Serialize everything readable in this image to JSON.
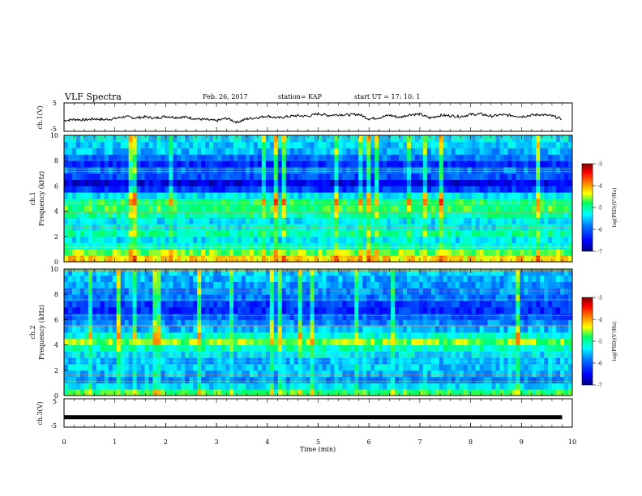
{
  "header": {
    "title": "VLF Spectra",
    "date": "Feb. 26, 2017",
    "station": "station= KAP",
    "start": "start  UT  =   17: 10: 1"
  },
  "chart_data": [
    {
      "type": "line",
      "id": "ch1_waveform",
      "ylabel": "ch.1(V)",
      "ylim": [
        -5,
        5
      ],
      "yticks": [
        "5",
        "-5"
      ],
      "xlim": [
        0,
        10
      ],
      "description_color": "#000000",
      "x": [
        0,
        0.2,
        0.4,
        0.6,
        0.8,
        1.0,
        1.2,
        1.4,
        1.6,
        1.8,
        2.0,
        2.2,
        2.4,
        2.6,
        2.8,
        3.0,
        3.2,
        3.4,
        3.6,
        3.8,
        4.0,
        4.2,
        4.4,
        4.6,
        4.8,
        5.0,
        5.2,
        5.4,
        5.6,
        5.8,
        6.0,
        6.2,
        6.4,
        6.6,
        6.8,
        7.0,
        7.2,
        7.4,
        7.6,
        7.8,
        8.0,
        8.2,
        8.4,
        8.6,
        8.8,
        9.0,
        9.2,
        9.4,
        9.6,
        9.8
      ],
      "y": [
        -1.2,
        -0.8,
        -1.0,
        -0.6,
        -0.9,
        -0.5,
        0.2,
        -0.3,
        0.1,
        -0.4,
        0.3,
        -0.1,
        0.0,
        -0.6,
        -0.9,
        -1.3,
        -0.4,
        -1.8,
        -0.6,
        -0.2,
        0.4,
        -0.3,
        0.2,
        0.5,
        0.3,
        1.2,
        0.6,
        0.9,
        0.8,
        1.0,
        -0.6,
        -0.2,
        0.7,
        -0.1,
        0.9,
        1.0,
        -0.3,
        0.6,
        0.5,
        0.2,
        0.9,
        1.1,
        0.3,
        0.8,
        0.6,
        0.2,
        0.7,
        0.9,
        0.4,
        -0.7
      ]
    },
    {
      "type": "heatmap",
      "id": "ch1_spectrogram",
      "ylabel_line1": "ch.1",
      "ylabel_line2": "Frequency (kHz)",
      "xlim": [
        0,
        10
      ],
      "ylim": [
        0,
        10
      ],
      "yticks": [
        "0",
        "2",
        "4",
        "6",
        "8",
        "10"
      ],
      "colorbar": {
        "label": "log(PSD)(V²/Hz)",
        "range": [
          -7,
          -3
        ],
        "ticks": [
          "-3",
          "-4",
          "-5",
          "-6",
          "-7"
        ]
      },
      "band_levels_kHz_to_logPSD": [
        {
          "f": 0.0,
          "v": -4.2
        },
        {
          "f": 0.5,
          "v": -4.6
        },
        {
          "f": 1.0,
          "v": -5.2
        },
        {
          "f": 1.5,
          "v": -5.4
        },
        {
          "f": 2.0,
          "v": -5.0
        },
        {
          "f": 2.5,
          "v": -5.3
        },
        {
          "f": 3.0,
          "v": -5.4
        },
        {
          "f": 3.5,
          "v": -5.0
        },
        {
          "f": 4.0,
          "v": -4.8
        },
        {
          "f": 4.5,
          "v": -4.9
        },
        {
          "f": 5.0,
          "v": -5.4
        },
        {
          "f": 5.5,
          "v": -6.2
        },
        {
          "f": 6.0,
          "v": -6.6
        },
        {
          "f": 6.5,
          "v": -6.1
        },
        {
          "f": 7.0,
          "v": -5.9
        },
        {
          "f": 7.5,
          "v": -6.3
        },
        {
          "f": 8.0,
          "v": -5.9
        },
        {
          "f": 8.5,
          "v": -5.6
        },
        {
          "f": 9.0,
          "v": -5.5
        },
        {
          "f": 9.5,
          "v": -5.4
        }
      ]
    },
    {
      "type": "heatmap",
      "id": "ch2_spectrogram",
      "ylabel_line1": "ch.2",
      "ylabel_line2": "Frequency (kHz)",
      "xlim": [
        0,
        10
      ],
      "ylim": [
        0,
        10
      ],
      "yticks": [
        "0",
        "2",
        "4",
        "6",
        "8",
        "10"
      ],
      "colorbar": {
        "label": "log(PSD)(V²/Hz)",
        "range": [
          -7,
          -3
        ],
        "ticks": [
          "-3",
          "-4",
          "-5",
          "-6",
          "-7"
        ]
      },
      "band_levels_kHz_to_logPSD": [
        {
          "f": 0.0,
          "v": -4.8
        },
        {
          "f": 0.5,
          "v": -5.4
        },
        {
          "f": 1.0,
          "v": -5.8
        },
        {
          "f": 1.5,
          "v": -5.6
        },
        {
          "f": 2.0,
          "v": -5.5
        },
        {
          "f": 2.5,
          "v": -5.6
        },
        {
          "f": 3.0,
          "v": -5.4
        },
        {
          "f": 3.5,
          "v": -5.1
        },
        {
          "f": 4.0,
          "v": -4.6
        },
        {
          "f": 4.5,
          "v": -5.2
        },
        {
          "f": 5.0,
          "v": -5.6
        },
        {
          "f": 5.5,
          "v": -5.8
        },
        {
          "f": 6.0,
          "v": -6.0
        },
        {
          "f": 6.5,
          "v": -6.3
        },
        {
          "f": 7.0,
          "v": -6.2
        },
        {
          "f": 7.5,
          "v": -5.9
        },
        {
          "f": 8.0,
          "v": -5.8
        },
        {
          "f": 8.5,
          "v": -5.7
        },
        {
          "f": 9.0,
          "v": -5.6
        },
        {
          "f": 9.5,
          "v": -5.5
        }
      ]
    },
    {
      "type": "line",
      "id": "ch3_waveform",
      "ylabel": "ch.3(V)",
      "ylim": [
        -5,
        5
      ],
      "yticks": [
        "5",
        "-5"
      ],
      "xlim": [
        0,
        10
      ],
      "xlabel": "Time (min)",
      "xticks": [
        "0",
        "1",
        "2",
        "3",
        "4",
        "5",
        "6",
        "7",
        "8",
        "9",
        "10"
      ],
      "x": [
        0,
        9.8
      ],
      "y": [
        -1.5,
        -1.5
      ]
    }
  ]
}
